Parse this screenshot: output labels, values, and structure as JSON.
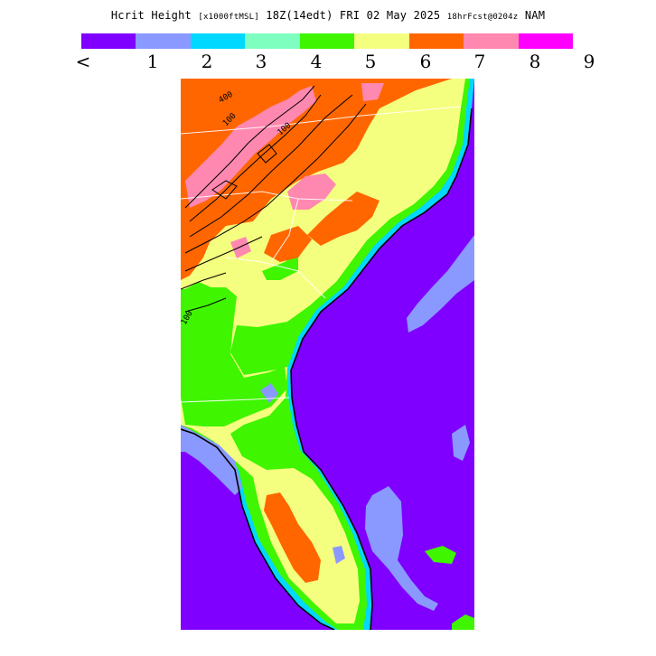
{
  "header": {
    "product": "Hcrit Height",
    "units": "[x1000ftMSL]",
    "valid": "18Z(14edt) FRI 02 May 2025",
    "forecast": "18hrFcst@0204z",
    "model": "NAM"
  },
  "legend": {
    "colors": [
      "#7f00ff",
      "#8a99ff",
      "#00d8ff",
      "#7fffbf",
      "#3ff500",
      "#f5ff7f",
      "#ff6600",
      "#ff88b0",
      "#ff00ff"
    ],
    "tick_labels": [
      "<",
      "1",
      "2",
      "3",
      "4",
      "5",
      "6",
      "7",
      "8",
      "9"
    ]
  },
  "map": {
    "contour_labels": [
      "400",
      "100",
      "100",
      "100"
    ]
  }
}
